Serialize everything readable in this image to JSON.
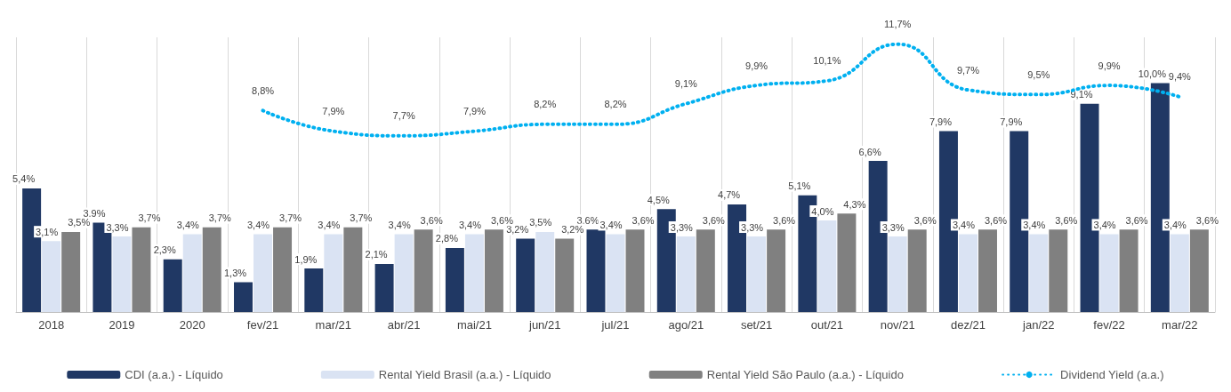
{
  "chart_data": {
    "type": "bar",
    "categories": [
      "2018",
      "2019",
      "2020",
      "fev/21",
      "mar/21",
      "abr/21",
      "mai/21",
      "jun/21",
      "jul/21",
      "ago/21",
      "set/21",
      "out/21",
      "nov/21",
      "dez/21",
      "jan/22",
      "fev/22",
      "mar/22"
    ],
    "series": [
      {
        "name": "CDI (a.a.) - Líquido",
        "color": "#203864",
        "values": [
          5.4,
          3.9,
          2.3,
          1.3,
          1.9,
          2.1,
          2.8,
          3.2,
          3.6,
          4.5,
          4.7,
          5.1,
          6.6,
          7.9,
          7.9,
          9.1,
          10.0
        ],
        "value_labels": [
          "5,4%",
          "3,9%",
          "2,3%",
          "1,3%",
          "1,9%",
          "2,1%",
          "2,8%",
          "3,2%",
          "3,6%",
          "4,5%",
          "4,7%",
          "5,1%",
          "6,6%",
          "7,9%",
          "7,9%",
          "9,1%",
          "10,0%"
        ]
      },
      {
        "name": "Rental Yield Brasil (a.a.) - Líquido",
        "color": "#dae3f3",
        "values": [
          3.1,
          3.3,
          3.4,
          3.4,
          3.4,
          3.4,
          3.4,
          3.5,
          3.4,
          3.3,
          3.3,
          4.0,
          3.3,
          3.4,
          3.4,
          3.4,
          3.4
        ],
        "value_labels": [
          "3,1%",
          "3,3%",
          "3,4%",
          "3,4%",
          "3,4%",
          "3,4%",
          "3,4%",
          "3,5%",
          "3,4%",
          "3,3%",
          "3,3%",
          "4,0%",
          "3,3%",
          "3,4%",
          "3,4%",
          "3,4%",
          "3,4%"
        ]
      },
      {
        "name": "Rental Yield São Paulo (a.a.) - Líquido",
        "color": "#808080",
        "values": [
          3.5,
          3.7,
          3.7,
          3.7,
          3.7,
          3.6,
          3.6,
          3.2,
          3.6,
          3.6,
          3.6,
          4.3,
          3.6,
          3.6,
          3.6,
          3.6,
          3.6
        ],
        "value_labels": [
          "3,5%",
          "3,7%",
          "3,7%",
          "3,7%",
          "3,7%",
          "3,6%",
          "3,6%",
          "3,2%",
          "3,6%",
          "3,6%",
          "3,6%",
          "4,3%",
          "3,6%",
          "3,6%",
          "3,6%",
          "3,6%",
          "3,6%"
        ]
      },
      {
        "name": "Dividend Yield (a.a.)",
        "type": "line",
        "color": "#00b0f0",
        "marker": "none",
        "line_style": "dotted",
        "values": [
          null,
          null,
          null,
          8.8,
          7.9,
          7.7,
          7.9,
          8.2,
          8.2,
          9.1,
          9.9,
          10.1,
          11.7,
          9.7,
          9.5,
          9.9,
          9.4
        ],
        "value_labels": [
          null,
          null,
          null,
          "8,8%",
          "7,9%",
          "7,7%",
          "7,9%",
          "8,2%",
          "8,2%",
          "9,1%",
          "9,9%",
          "10,1%",
          "11,7%",
          "9,7%",
          "9,5%",
          "9,9%",
          "9,4%"
        ]
      }
    ],
    "grid": "x",
    "legend": "bottom",
    "tick_labels": "x"
  }
}
